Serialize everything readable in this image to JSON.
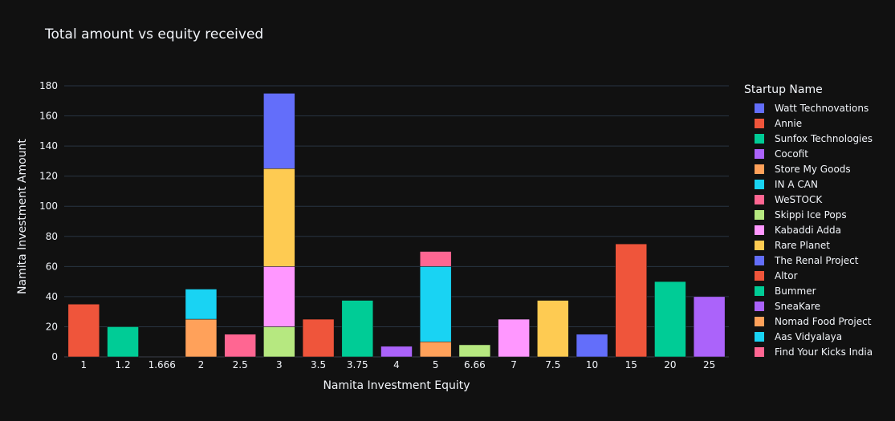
{
  "chart_data": {
    "type": "bar",
    "barmode": "stack",
    "title": "Total amount vs equity received",
    "xlabel": "Namita Investment Equity",
    "ylabel": "Namita Investment Amount",
    "ylim": [
      0,
      180
    ],
    "yticks": [
      0,
      20,
      40,
      60,
      80,
      100,
      120,
      140,
      160,
      180
    ],
    "grid": true,
    "legend_title": "Startup Name",
    "legend_position": "right",
    "categories": [
      "1",
      "1.2",
      "1.666",
      "2",
      "2.5",
      "3",
      "3.5",
      "3.75",
      "4",
      "5",
      "6.66",
      "7",
      "7.5",
      "10",
      "15",
      "20",
      "25"
    ],
    "series": [
      {
        "name": "Watt Technovations",
        "color": "#636efa",
        "values": [
          0,
          0,
          0,
          0,
          0,
          0,
          0,
          0,
          0,
          0,
          0,
          0,
          0,
          0,
          0,
          0,
          0
        ]
      },
      {
        "name": "Annie",
        "color": "#ef553b",
        "values": [
          35,
          0,
          0,
          0,
          0,
          0,
          0,
          0,
          0,
          0,
          0,
          0,
          0,
          0,
          0,
          0,
          0
        ]
      },
      {
        "name": "Sunfox Technologies",
        "color": "#00cc96",
        "values": [
          0,
          20,
          0,
          0,
          0,
          0,
          0,
          0,
          0,
          0,
          0,
          0,
          0,
          0,
          0,
          0,
          0
        ]
      },
      {
        "name": "Cocofit",
        "color": "#ab63fa",
        "values": [
          0,
          0,
          0,
          0,
          0,
          0,
          0,
          0,
          0,
          0,
          0,
          0,
          0,
          0,
          0,
          0,
          0
        ]
      },
      {
        "name": "Store My Goods",
        "color": "#ffa15a",
        "values": [
          0,
          0,
          0,
          25,
          0,
          0,
          0,
          0,
          0,
          0,
          0,
          0,
          0,
          0,
          0,
          0,
          0
        ]
      },
      {
        "name": "IN A CAN",
        "color": "#19d3f3",
        "values": [
          0,
          0,
          0,
          20,
          0,
          0,
          0,
          0,
          0,
          0,
          0,
          0,
          0,
          0,
          0,
          0,
          0
        ]
      },
      {
        "name": "WeSTOCK",
        "color": "#ff6692",
        "values": [
          0,
          0,
          0,
          0,
          15,
          0,
          0,
          0,
          0,
          0,
          0,
          0,
          0,
          0,
          0,
          0,
          0
        ]
      },
      {
        "name": "Skippi Ice Pops",
        "color": "#b6e880",
        "values": [
          0,
          0,
          0,
          0,
          0,
          20,
          0,
          0,
          0,
          0,
          0,
          0,
          0,
          0,
          0,
          0,
          0
        ]
      },
      {
        "name": "Kabaddi Adda",
        "color": "#ff97ff",
        "values": [
          0,
          0,
          0,
          0,
          0,
          40,
          0,
          0,
          0,
          0,
          0,
          0,
          0,
          0,
          0,
          0,
          0
        ]
      },
      {
        "name": "Rare Planet",
        "color": "#fecb52",
        "values": [
          0,
          0,
          0,
          0,
          0,
          65,
          0,
          0,
          0,
          0,
          0,
          0,
          0,
          0,
          0,
          0,
          0
        ]
      },
      {
        "name": "The Renal Project",
        "color": "#636efa",
        "values": [
          0,
          0,
          0,
          0,
          0,
          50,
          0,
          0,
          0,
          0,
          0,
          0,
          0,
          0,
          0,
          0,
          0
        ]
      },
      {
        "name": "Altor",
        "color": "#ef553b",
        "values": [
          0,
          0,
          0,
          0,
          0,
          0,
          25,
          0,
          0,
          0,
          0,
          0,
          0,
          0,
          0,
          0,
          0
        ]
      },
      {
        "name": "Bummer",
        "color": "#00cc96",
        "values": [
          0,
          0,
          0,
          0,
          0,
          0,
          0,
          37.5,
          0,
          0,
          0,
          0,
          0,
          0,
          0,
          0,
          0
        ]
      },
      {
        "name": "SneaKare",
        "color": "#ab63fa",
        "values": [
          0,
          0,
          0,
          0,
          0,
          0,
          0,
          0,
          7,
          0,
          0,
          0,
          0,
          0,
          0,
          0,
          0
        ]
      },
      {
        "name": "Nomad Food Project",
        "color": "#ffa15a",
        "values": [
          0,
          0,
          0,
          0,
          0,
          0,
          0,
          0,
          0,
          10,
          0,
          0,
          0,
          0,
          0,
          0,
          0
        ]
      },
      {
        "name": "Aas Vidyalaya",
        "color": "#19d3f3",
        "values": [
          0,
          0,
          0,
          0,
          0,
          0,
          0,
          0,
          0,
          50,
          0,
          0,
          0,
          0,
          0,
          0,
          0
        ]
      },
      {
        "name": "Find Your Kicks India",
        "color": "#ff6692",
        "values": [
          0,
          0,
          0,
          0,
          0,
          0,
          0,
          0,
          0,
          10,
          0,
          0,
          0,
          0,
          0,
          0,
          0
        ]
      },
      {
        "name": "",
        "color": "#b6e880",
        "values": [
          0,
          0,
          0,
          0,
          0,
          0,
          0,
          0,
          0,
          0,
          8,
          0,
          0,
          0,
          0,
          0,
          0
        ]
      },
      {
        "name": "",
        "color": "#ff97ff",
        "values": [
          0,
          0,
          0,
          0,
          0,
          0,
          0,
          0,
          0,
          0,
          0,
          25,
          0,
          0,
          0,
          0,
          0
        ]
      },
      {
        "name": "",
        "color": "#fecb52",
        "values": [
          0,
          0,
          0,
          0,
          0,
          0,
          0,
          0,
          0,
          0,
          0,
          0,
          37.5,
          0,
          0,
          0,
          0
        ]
      },
      {
        "name": "",
        "color": "#636efa",
        "values": [
          0,
          0,
          0,
          0,
          0,
          0,
          0,
          0,
          0,
          0,
          0,
          0,
          0,
          15,
          0,
          0,
          0
        ]
      },
      {
        "name": "",
        "color": "#ef553b",
        "values": [
          0,
          0,
          0,
          0,
          0,
          0,
          0,
          0,
          0,
          0,
          0,
          0,
          0,
          0,
          75,
          0,
          0
        ]
      },
      {
        "name": "",
        "color": "#00cc96",
        "values": [
          0,
          0,
          0,
          0,
          0,
          0,
          0,
          0,
          0,
          0,
          0,
          0,
          0,
          0,
          0,
          50,
          0
        ]
      },
      {
        "name": "",
        "color": "#ab63fa",
        "values": [
          0,
          0,
          0,
          0,
          0,
          0,
          0,
          0,
          0,
          0,
          0,
          0,
          0,
          0,
          0,
          0,
          40
        ]
      }
    ]
  }
}
